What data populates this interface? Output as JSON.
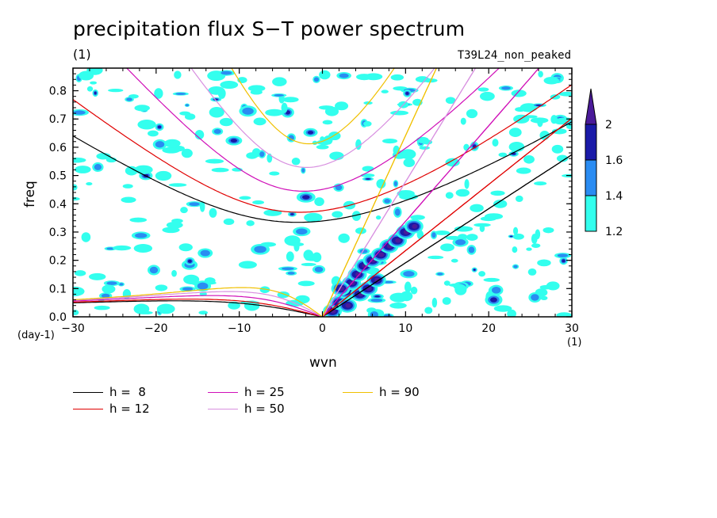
{
  "title": "precipitation flux S−T power spectrum",
  "units": "(1)",
  "experiment": "T39L24_non_peaked",
  "chart_data": {
    "type": "heatmap",
    "title": "precipitation flux S−T power spectrum",
    "xlabel": "wvn",
    "ylabel": "freq",
    "x_unit": "(1)",
    "y_unit": "(day-1)",
    "xlim": [
      -30,
      30
    ],
    "ylim": [
      0.0,
      0.88
    ],
    "xticks": [
      -30,
      -20,
      -10,
      0,
      10,
      20,
      30
    ],
    "yticks": [
      0.0,
      0.1,
      0.2,
      0.3,
      0.4,
      0.5,
      0.6,
      0.7,
      0.8
    ],
    "contour_levels": [
      1.2,
      1.4,
      1.6,
      2
    ],
    "colorbar": [
      {
        "range": [
          1.2,
          1.4
        ],
        "color": "#33ffee"
      },
      {
        "range": [
          1.4,
          1.6
        ],
        "color": "#2a8cf2"
      },
      {
        "range": [
          1.6,
          2.0
        ],
        "color": "#1a1aa8"
      },
      {
        "range": [
          2.0,
          null
        ],
        "color": "#4a1a99"
      }
    ],
    "dispersion_curves": [
      {
        "label": "h =  8",
        "color": "#000000"
      },
      {
        "label": "h = 12",
        "color": "#e00000"
      },
      {
        "label": "h = 25",
        "color": "#d010b8"
      },
      {
        "label": "h = 50",
        "color": "#d890e0"
      },
      {
        "label": "h = 90",
        "color": "#f0c000"
      }
    ],
    "power_regions": [
      {
        "x": [
          1,
          9
        ],
        "y": [
          0.0,
          0.22
        ],
        "level": 2.0,
        "desc": "Kelvin wave band"
      },
      {
        "x": [
          9,
          12
        ],
        "y": [
          0.22,
          0.34
        ],
        "level": 1.6
      },
      {
        "x": [
          19,
          22
        ],
        "y": [
          0.02,
          0.08
        ],
        "level": 1.6
      },
      {
        "x": [
          -20,
          30
        ],
        "y": [
          0.0,
          0.88
        ],
        "level": 1.2,
        "desc": "scattered patches"
      }
    ],
    "grid": false,
    "legend_position": "bottom-left"
  }
}
